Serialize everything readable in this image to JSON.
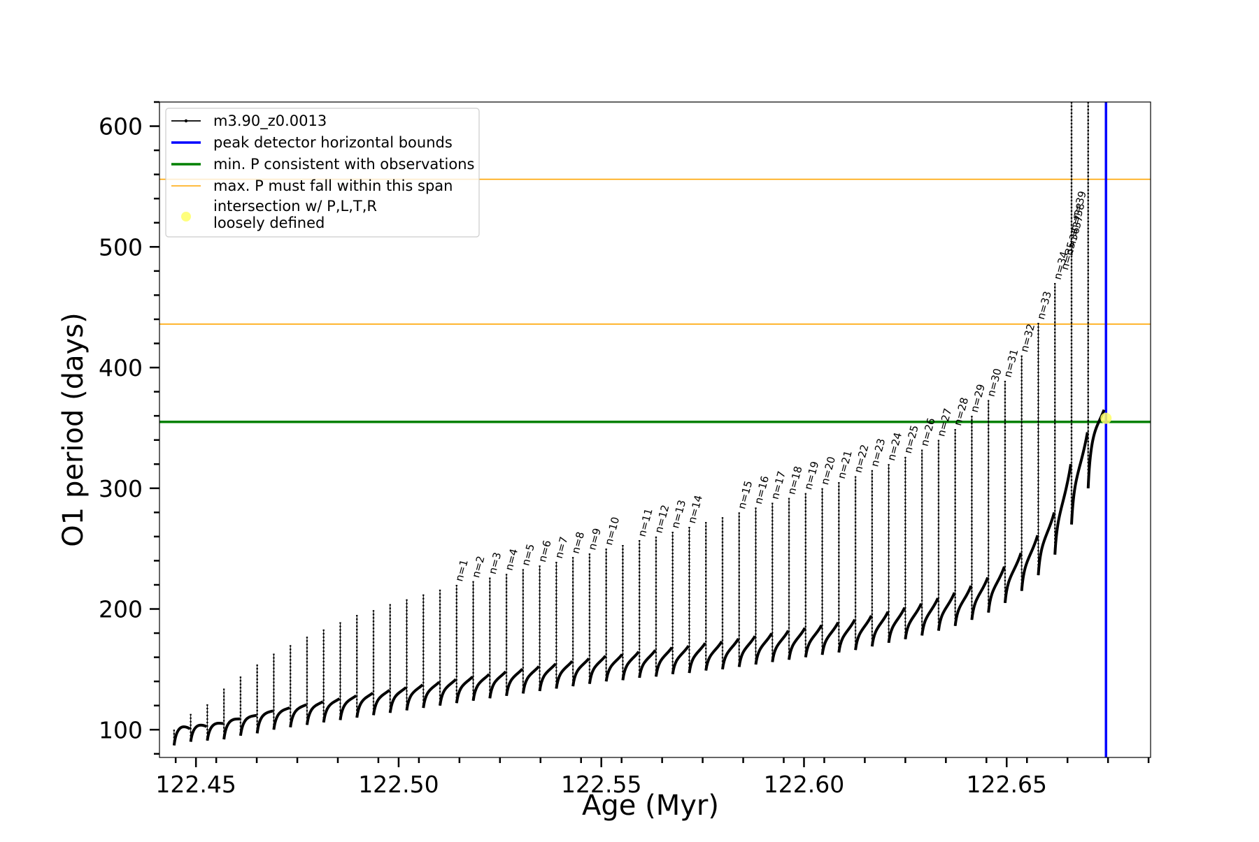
{
  "chart_data": {
    "type": "line",
    "title": "",
    "xlabel": "Age (Myr)",
    "ylabel": "O1 period (days)",
    "xlim": [
      122.441,
      122.6855
    ],
    "ylim": [
      77,
      620
    ],
    "xticks": {
      "values": [
        122.45,
        122.5,
        122.55,
        122.6,
        122.65
      ],
      "labels": [
        "122.45",
        "122.50",
        "122.55",
        "122.60",
        "122.65"
      ]
    },
    "yticks": {
      "values": [
        100,
        200,
        300,
        400,
        500,
        600
      ],
      "labels": [
        "100",
        "200",
        "300",
        "400",
        "500",
        "600"
      ]
    },
    "grid": false,
    "legend_position": "upper-left",
    "colors": {
      "track": "#000000",
      "blue": "#0000ff",
      "green": "#008000",
      "orange": "#ffa500",
      "marker": "#ffff66"
    },
    "series": [
      {
        "name": "m3.90_z0.0013",
        "kind": "pulse-cycles",
        "cycles": [
          {
            "x": 122.4446,
            "min": 87,
            "max": 100
          },
          {
            "x": 122.4487,
            "min": 90,
            "max": 113
          },
          {
            "x": 122.4528,
            "min": 91,
            "max": 121
          },
          {
            "x": 122.4569,
            "min": 92,
            "max": 134
          },
          {
            "x": 122.461,
            "min": 95,
            "max": 144
          },
          {
            "x": 122.4651,
            "min": 97,
            "max": 154
          },
          {
            "x": 122.4692,
            "min": 100,
            "max": 163
          },
          {
            "x": 122.4733,
            "min": 102,
            "max": 170
          },
          {
            "x": 122.4774,
            "min": 104,
            "max": 177
          },
          {
            "x": 122.4815,
            "min": 106,
            "max": 183
          },
          {
            "x": 122.4856,
            "min": 108,
            "max": 189
          },
          {
            "x": 122.4897,
            "min": 110,
            "max": 195
          },
          {
            "x": 122.4938,
            "min": 112,
            "max": 199
          },
          {
            "x": 122.4979,
            "min": 114,
            "max": 204
          },
          {
            "x": 122.502,
            "min": 116,
            "max": 208
          },
          {
            "x": 122.5061,
            "min": 118,
            "max": 212
          },
          {
            "x": 122.5102,
            "min": 120,
            "max": 216
          },
          {
            "x": 122.5143,
            "min": 122,
            "max": 220
          },
          {
            "x": 122.5184,
            "min": 124,
            "max": 223
          },
          {
            "x": 122.5225,
            "min": 126,
            "max": 226
          },
          {
            "x": 122.5266,
            "min": 128,
            "max": 229
          },
          {
            "x": 122.5307,
            "min": 130,
            "max": 233
          },
          {
            "x": 122.5348,
            "min": 132,
            "max": 236
          },
          {
            "x": 122.5389,
            "min": 134,
            "max": 239
          },
          {
            "x": 122.543,
            "min": 136,
            "max": 243
          },
          {
            "x": 122.5471,
            "min": 138,
            "max": 246
          },
          {
            "x": 122.5512,
            "min": 140,
            "max": 250
          },
          {
            "x": 122.5553,
            "min": 141,
            "max": 253
          },
          {
            "x": 122.5594,
            "min": 143,
            "max": 257
          },
          {
            "x": 122.5635,
            "min": 144,
            "max": 260
          },
          {
            "x": 122.5676,
            "min": 146,
            "max": 264
          },
          {
            "x": 122.5717,
            "min": 147,
            "max": 268
          },
          {
            "x": 122.5758,
            "min": 149,
            "max": 272
          },
          {
            "x": 122.5799,
            "min": 150,
            "max": 276
          },
          {
            "x": 122.584,
            "min": 152,
            "max": 280
          },
          {
            "x": 122.5881,
            "min": 154,
            "max": 284
          },
          {
            "x": 122.5922,
            "min": 156,
            "max": 288
          },
          {
            "x": 122.5963,
            "min": 158,
            "max": 292
          },
          {
            "x": 122.6004,
            "min": 160,
            "max": 296
          },
          {
            "x": 122.6045,
            "min": 162,
            "max": 300
          },
          {
            "x": 122.6086,
            "min": 164,
            "max": 305
          },
          {
            "x": 122.6127,
            "min": 166,
            "max": 310
          },
          {
            "x": 122.6168,
            "min": 169,
            "max": 315
          },
          {
            "x": 122.6209,
            "min": 172,
            "max": 320
          },
          {
            "x": 122.625,
            "min": 175,
            "max": 326
          },
          {
            "x": 122.6291,
            "min": 178,
            "max": 332
          },
          {
            "x": 122.6332,
            "min": 182,
            "max": 340
          },
          {
            "x": 122.6373,
            "min": 186,
            "max": 349
          },
          {
            "x": 122.6414,
            "min": 191,
            "max": 360
          },
          {
            "x": 122.6455,
            "min": 197,
            "max": 373
          },
          {
            "x": 122.6496,
            "min": 205,
            "max": 389
          },
          {
            "x": 122.6537,
            "min": 215,
            "max": 410
          },
          {
            "x": 122.6578,
            "min": 228,
            "max": 437
          },
          {
            "x": 122.6619,
            "min": 245,
            "max": 470
          },
          {
            "x": 122.666,
            "min": 270,
            "max": 620
          },
          {
            "x": 122.6701,
            "min": 300,
            "max": 620
          }
        ]
      },
      {
        "name": "peak detector horizontal bounds",
        "kind": "vline",
        "x": 122.6745
      },
      {
        "name": "min. P consistent with observations",
        "kind": "hline",
        "y": 355
      },
      {
        "name": "max. P must fall within this span",
        "kind": "hline",
        "y": [
          436,
          556
        ]
      },
      {
        "name": "intersection w/ P,L,T,R\nloosely defined",
        "kind": "point",
        "x": 122.6745,
        "y": 358
      }
    ],
    "legend": {
      "items": [
        {
          "label": "m3.90_z0.0013"
        },
        {
          "label": "peak detector horizontal bounds"
        },
        {
          "label": "min. P consistent with observations"
        },
        {
          "label": "max. P must fall within this span"
        },
        {
          "label_lines": [
            "intersection w/ P,L,T,R",
            "loosely defined"
          ]
        }
      ]
    },
    "annotations": [
      {
        "text": "n=1",
        "x": 122.5143,
        "y": 220
      },
      {
        "text": "n=2",
        "x": 122.5184,
        "y": 223
      },
      {
        "text": "n=3",
        "x": 122.5225,
        "y": 226
      },
      {
        "text": "n=4",
        "x": 122.5266,
        "y": 229
      },
      {
        "text": "n=5",
        "x": 122.5307,
        "y": 233
      },
      {
        "text": "n=6",
        "x": 122.5348,
        "y": 236
      },
      {
        "text": "n=7",
        "x": 122.5389,
        "y": 239
      },
      {
        "text": "n=8",
        "x": 122.543,
        "y": 243
      },
      {
        "text": "n=9",
        "x": 122.5471,
        "y": 246
      },
      {
        "text": "n=10",
        "x": 122.5512,
        "y": 250
      },
      {
        "text": "n=11",
        "x": 122.5594,
        "y": 257
      },
      {
        "text": "n=12",
        "x": 122.5635,
        "y": 260
      },
      {
        "text": "n=13",
        "x": 122.5676,
        "y": 264
      },
      {
        "text": "n=14",
        "x": 122.5717,
        "y": 268
      },
      {
        "text": "n=15",
        "x": 122.584,
        "y": 280
      },
      {
        "text": "n=16",
        "x": 122.5881,
        "y": 284
      },
      {
        "text": "n=17",
        "x": 122.5922,
        "y": 288
      },
      {
        "text": "n=18",
        "x": 122.5963,
        "y": 292
      },
      {
        "text": "n=19",
        "x": 122.6004,
        "y": 296
      },
      {
        "text": "n=20",
        "x": 122.6045,
        "y": 300
      },
      {
        "text": "n=21",
        "x": 122.6086,
        "y": 305
      },
      {
        "text": "n=22",
        "x": 122.6127,
        "y": 310
      },
      {
        "text": "n=23",
        "x": 122.6168,
        "y": 315
      },
      {
        "text": "n=24",
        "x": 122.6209,
        "y": 320
      },
      {
        "text": "n=25",
        "x": 122.625,
        "y": 326
      },
      {
        "text": "n=26",
        "x": 122.6291,
        "y": 332
      },
      {
        "text": "n=27",
        "x": 122.6332,
        "y": 340
      },
      {
        "text": "n=28",
        "x": 122.6373,
        "y": 349
      },
      {
        "text": "n=29",
        "x": 122.6414,
        "y": 360
      },
      {
        "text": "n=30",
        "x": 122.6455,
        "y": 373
      },
      {
        "text": "n=31",
        "x": 122.6496,
        "y": 389
      },
      {
        "text": "n=32",
        "x": 122.6537,
        "y": 410
      },
      {
        "text": "n=33",
        "x": 122.6578,
        "y": 437
      },
      {
        "text": "n=34",
        "x": 122.6619,
        "y": 470
      },
      {
        "text": "n=35",
        "x": 122.6637,
        "y": 478
      },
      {
        "text": "n=36",
        "x": 122.6648,
        "y": 490
      },
      {
        "text": "n=37",
        "x": 122.6656,
        "y": 500
      },
      {
        "text": "n=38",
        "x": 122.666,
        "y": 510
      },
      {
        "text": "n=39",
        "x": 122.6664,
        "y": 520
      }
    ]
  }
}
